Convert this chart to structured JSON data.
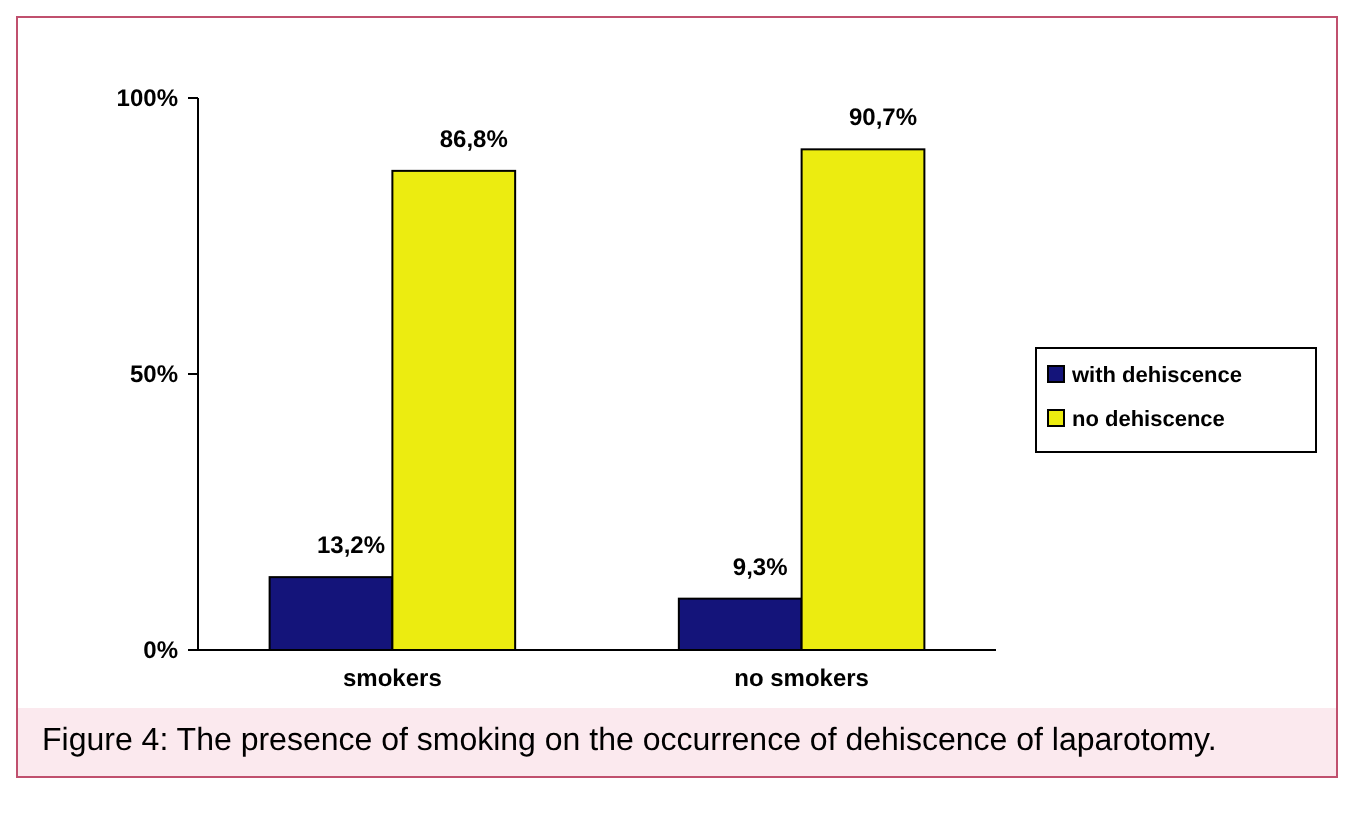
{
  "chart_data": {
    "type": "bar",
    "categories": [
      "smokers",
      "no smokers"
    ],
    "series": [
      {
        "name": "with dehiscence",
        "color": "#14147a",
        "values": [
          13.2,
          9.3
        ],
        "value_labels": [
          "13,2%",
          "9,3%"
        ]
      },
      {
        "name": "no dehiscence",
        "color": "#ecec10",
        "values": [
          86.8,
          90.7
        ],
        "value_labels": [
          "86,8%",
          "90,7%"
        ]
      }
    ],
    "ylim": [
      0,
      100
    ],
    "yticks": [
      {
        "value": 0,
        "label": "0%"
      },
      {
        "value": 50,
        "label": "50%"
      },
      {
        "value": 100,
        "label": "100%"
      }
    ],
    "legend": "right",
    "annotations": [
      "Figure 4: The presence of smoking on the occurrence of dehiscence of laparotomy."
    ]
  }
}
